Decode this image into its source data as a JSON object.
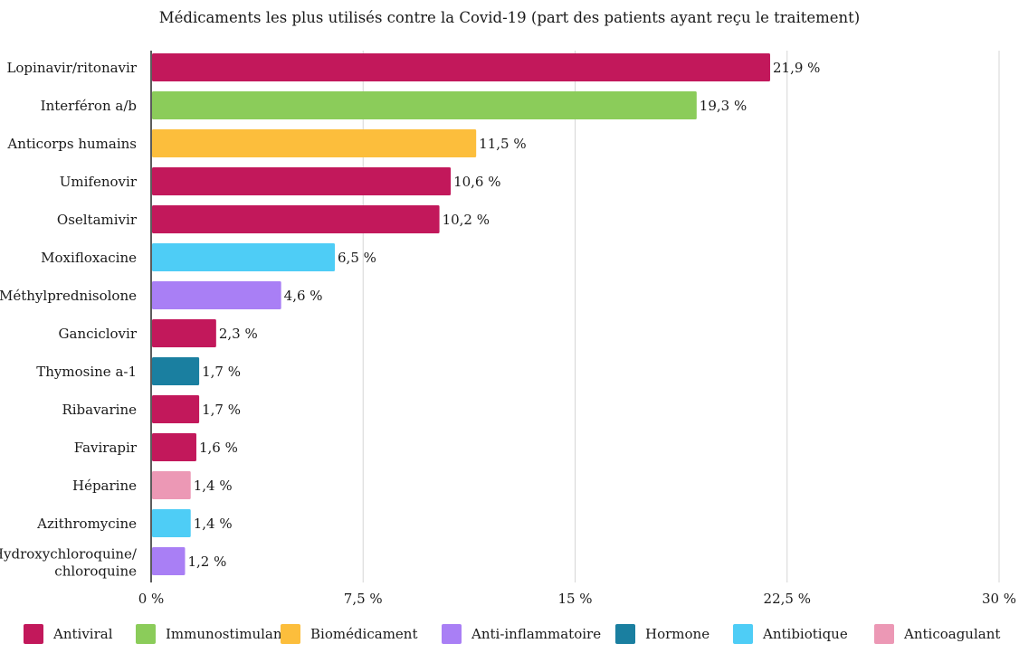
{
  "chart_data": {
    "type": "bar",
    "orientation": "horizontal",
    "title": "Médicaments les plus utilisés contre la Covid-19 (part des patients ayant reçu le traitement)",
    "categories": [
      "Lopinavir/ritonavir",
      "Interféron a/b",
      "Anticorps humains",
      "Umifenovir",
      "Oseltamivir",
      "Moxifloxacine",
      "Méthylprednisolone",
      "Ganciclovir",
      "Thymosine a-1",
      "Ribavarine",
      "Favirapir",
      "Héparine",
      "Azithromycine",
      "Hydroxychloroquine/ chloroquine"
    ],
    "values": [
      21.9,
      19.3,
      11.5,
      10.6,
      10.2,
      6.5,
      4.6,
      2.3,
      1.7,
      1.7,
      1.6,
      1.4,
      1.4,
      1.2
    ],
    "value_labels": [
      "21,9 %",
      "19,3 %",
      "11,5 %",
      "10,6 %",
      "10,2 %",
      "6,5 %",
      "4,6 %",
      "2,3 %",
      "1,7 %",
      "1,7 %",
      "1,6 %",
      "1,4 %",
      "1,4 %",
      "1,2 %"
    ],
    "bar_groups": [
      "Antiviral",
      "Immunostimulant",
      "Biomédicament",
      "Antiviral",
      "Antiviral",
      "Antibiotique",
      "Anti-inflammatoire",
      "Antiviral",
      "Hormone",
      "Antiviral",
      "Antiviral",
      "Anticoagulant",
      "Antibiotique",
      "Anti-inflammatoire"
    ],
    "xlim": [
      0,
      30
    ],
    "xticks": [
      0,
      7.5,
      15,
      22.5,
      30
    ],
    "xtick_labels": [
      "0 %",
      "7,5 %",
      "15 %",
      "22,5 %",
      "30 %"
    ],
    "grid": "vertical",
    "legend": [
      {
        "name": "Antiviral",
        "color": "#c2185b"
      },
      {
        "name": "Immunostimulant",
        "color": "#8bcc5a"
      },
      {
        "name": "Biomédicament",
        "color": "#fcbe3c"
      },
      {
        "name": "Anti-inflammatoire",
        "color": "#a97ff5"
      },
      {
        "name": "Hormone",
        "color": "#1a7fa0"
      },
      {
        "name": "Antibiotique",
        "color": "#4ecdf6"
      },
      {
        "name": "Anticoagulant",
        "color": "#ec98b5"
      }
    ],
    "legend_position": "bottom"
  }
}
